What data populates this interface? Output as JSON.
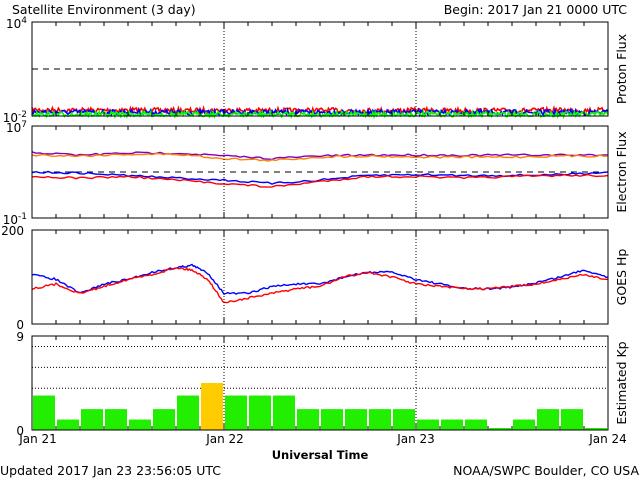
{
  "header": {
    "title": "Satellite Environment (3 day)",
    "begin": "Begin:  2017 Jan 21 0000 UTC"
  },
  "footer": {
    "updated": "Updated 2017 Jan 23 23:56:05 UTC",
    "credit": "NOAA/SWPC Boulder, CO USA",
    "xlabel": "Universal Time",
    "xticks": [
      "Jan 21",
      "Jan 22",
      "Jan 23",
      "Jan 24"
    ]
  },
  "chart_data": [
    {
      "type": "line",
      "ylabel": "Proton Flux",
      "yscale": "log",
      "ylim": [
        0.01,
        10000
      ],
      "yticks": [
        {
          "base": "10",
          "exp": "4",
          "value": 10000
        },
        {
          "base": "10",
          "exp": "-2",
          "value": 0.01
        }
      ],
      "threshold": 10,
      "x_range_hours": [
        0,
        72
      ],
      "series": [
        {
          "color": "#ff0000",
          "x": [
            0,
            6,
            12,
            18,
            24,
            30,
            36,
            42,
            48,
            54,
            60,
            66,
            72
          ],
          "values": [
            0.025,
            0.023,
            0.024,
            0.022,
            0.023,
            0.022,
            0.023,
            0.022,
            0.023,
            0.022,
            0.022,
            0.023,
            0.023
          ]
        },
        {
          "color": "#0000ff",
          "x": [
            0,
            6,
            12,
            18,
            24,
            30,
            36,
            42,
            48,
            54,
            60,
            66,
            72
          ],
          "values": [
            0.018,
            0.017,
            0.018,
            0.017,
            0.017,
            0.017,
            0.017,
            0.017,
            0.017,
            0.017,
            0.017,
            0.017,
            0.017
          ]
        },
        {
          "color": "#00ff00",
          "x": [
            0,
            6,
            12,
            18,
            24,
            30,
            36,
            42,
            48,
            54,
            60,
            66,
            72
          ],
          "values": [
            0.013,
            0.013,
            0.013,
            0.013,
            0.013,
            0.013,
            0.013,
            0.013,
            0.013,
            0.013,
            0.013,
            0.013,
            0.013
          ]
        }
      ]
    },
    {
      "type": "line",
      "ylabel": "Electron Flux",
      "yscale": "log",
      "ylim": [
        0.1,
        10000000
      ],
      "yticks": [
        {
          "base": "10",
          "exp": "7",
          "value": 10000000
        },
        {
          "base": "10",
          "exp": "-1",
          "value": 0.1
        }
      ],
      "threshold": 1000,
      "x_range_hours": [
        0,
        72
      ],
      "series": [
        {
          "color": "#8000c0",
          "x": [
            0,
            6,
            12,
            18,
            24,
            30,
            36,
            42,
            48,
            54,
            60,
            66,
            72
          ],
          "values": [
            50000,
            30000,
            45000,
            45000,
            25000,
            15000,
            25000,
            30000,
            30000,
            28000,
            30000,
            30000,
            30000
          ]
        },
        {
          "color": "#ff8000",
          "x": [
            0,
            6,
            12,
            18,
            24,
            30,
            36,
            42,
            48,
            54,
            60,
            66,
            72
          ],
          "values": [
            30000,
            25000,
            35000,
            35000,
            15000,
            10000,
            20000,
            25000,
            20000,
            20000,
            20000,
            25000,
            25000
          ]
        },
        {
          "color": "#0000ff",
          "x": [
            0,
            6,
            12,
            18,
            24,
            30,
            36,
            42,
            48,
            54,
            60,
            66,
            72
          ],
          "values": [
            1000,
            800,
            500,
            300,
            200,
            100,
            200,
            500,
            600,
            500,
            500,
            600,
            1000
          ]
        },
        {
          "color": "#ff0000",
          "x": [
            0,
            6,
            12,
            18,
            24,
            30,
            36,
            42,
            48,
            54,
            60,
            66,
            72
          ],
          "values": [
            400,
            300,
            400,
            200,
            100,
            50,
            150,
            400,
            400,
            300,
            400,
            500,
            500
          ]
        }
      ]
    },
    {
      "type": "line",
      "ylabel": "GOES Hp",
      "ylim": [
        0,
        200
      ],
      "yticks": [
        200,
        0
      ],
      "x_range_hours": [
        0,
        72
      ],
      "series": [
        {
          "color": "#0000ff",
          "x": [
            0,
            3,
            6,
            9,
            12,
            15,
            18,
            20,
            22,
            24,
            27,
            30,
            33,
            36,
            39,
            42,
            45,
            48,
            51,
            54,
            57,
            60,
            63,
            66,
            69,
            72
          ],
          "values": [
            105,
            95,
            65,
            85,
            95,
            110,
            120,
            125,
            108,
            65,
            65,
            80,
            85,
            85,
            100,
            110,
            110,
            95,
            85,
            75,
            75,
            78,
            88,
            100,
            115,
            100
          ]
        },
        {
          "color": "#ff0000",
          "x": [
            0,
            3,
            6,
            9,
            12,
            15,
            18,
            20,
            22,
            24,
            27,
            30,
            33,
            36,
            39,
            42,
            45,
            48,
            51,
            54,
            57,
            60,
            63,
            66,
            69,
            72
          ],
          "values": [
            75,
            85,
            65,
            80,
            95,
            105,
            120,
            115,
            95,
            45,
            55,
            65,
            75,
            80,
            100,
            110,
            100,
            85,
            80,
            75,
            75,
            80,
            85,
            95,
            105,
            95
          ]
        }
      ]
    },
    {
      "type": "bar",
      "ylabel": "Estimated Kp",
      "ylim": [
        0,
        9
      ],
      "yticks": [
        9,
        0
      ],
      "x_range_hours": [
        0,
        72
      ],
      "bar_hours": 3,
      "values": [
        3.3,
        1,
        2,
        2,
        1,
        2,
        3.3,
        4.5,
        3.3,
        3.3,
        3.3,
        2,
        2,
        2,
        2,
        2,
        1,
        1,
        1,
        0,
        1,
        2,
        2,
        0
      ],
      "colors": {
        "quiet": "#22ee00",
        "active": "#ffcc00"
      },
      "active_threshold": 4
    }
  ]
}
